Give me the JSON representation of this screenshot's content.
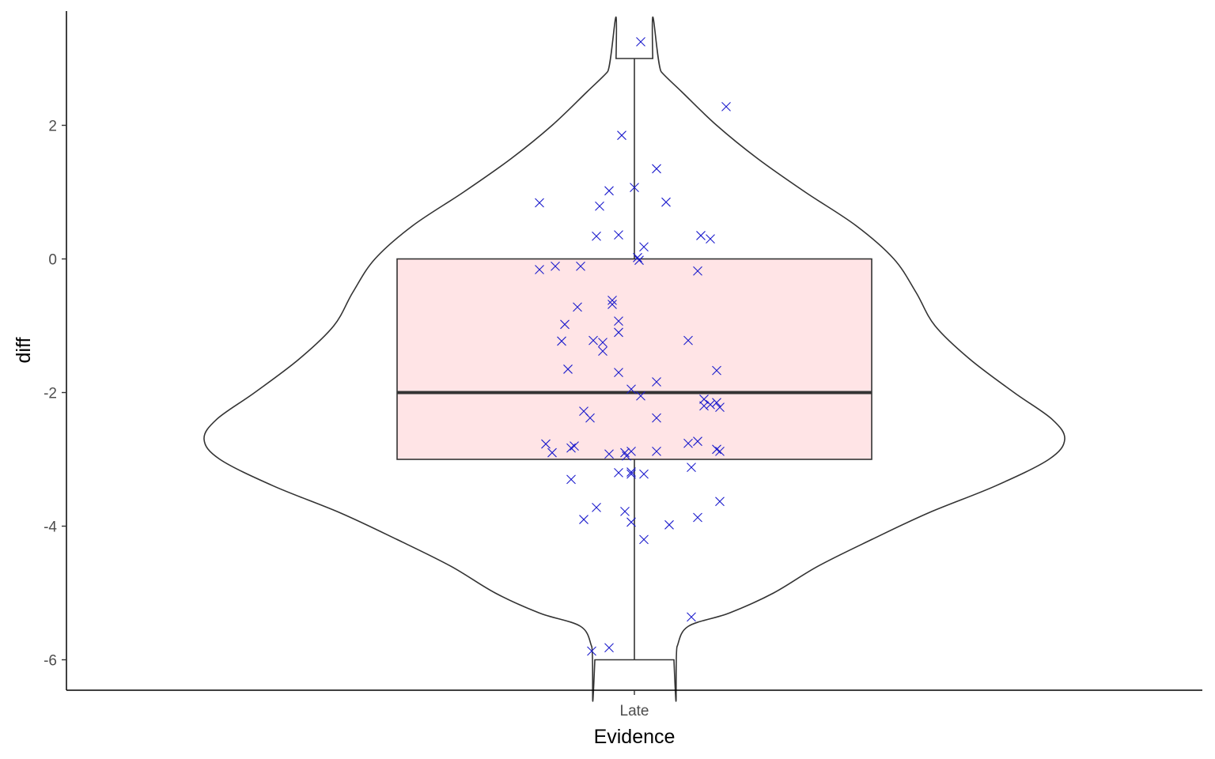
{
  "chart_data": {
    "type": "violin",
    "title": "",
    "xlabel": "Evidence",
    "ylabel": "diff",
    "categories": [
      "Late"
    ],
    "yticks": [
      2,
      0,
      -2,
      -4,
      -6
    ],
    "ytick_labels": [
      "2",
      "0",
      "-2",
      "-4",
      "-6"
    ],
    "ylim": [
      -6.45,
      3.7
    ],
    "grid": false,
    "legend": "none",
    "box": {
      "category": "Late",
      "min": -6,
      "q1": -3,
      "median": -2,
      "q3": 0,
      "max": 3,
      "fill_color": "#ffe4e6",
      "line_color": "#333333"
    },
    "violin": {
      "category": "Late",
      "line_color": "#333333",
      "density": [
        {
          "y": 3.0,
          "w": 0.058
        },
        {
          "y": 2.8,
          "w": 0.085
        },
        {
          "y": 2.5,
          "w": 0.15
        },
        {
          "y": 2.0,
          "w": 0.26
        },
        {
          "y": 1.5,
          "w": 0.39
        },
        {
          "y": 1.0,
          "w": 0.54
        },
        {
          "y": 0.5,
          "w": 0.7
        },
        {
          "y": 0.0,
          "w": 0.82
        },
        {
          "y": -0.5,
          "w": 0.89
        },
        {
          "y": -1.0,
          "w": 0.95
        },
        {
          "y": -1.5,
          "w": 1.06
        },
        {
          "y": -2.0,
          "w": 1.2
        },
        {
          "y": -2.4,
          "w": 1.32
        },
        {
          "y": -2.7,
          "w": 1.36
        },
        {
          "y": -3.0,
          "w": 1.31
        },
        {
          "y": -3.4,
          "w": 1.14
        },
        {
          "y": -3.8,
          "w": 0.93
        },
        {
          "y": -4.2,
          "w": 0.75
        },
        {
          "y": -4.6,
          "w": 0.58
        },
        {
          "y": -5.0,
          "w": 0.44
        },
        {
          "y": -5.3,
          "w": 0.3
        },
        {
          "y": -5.5,
          "w": 0.17
        },
        {
          "y": -5.8,
          "w": 0.135
        },
        {
          "y": -6.0,
          "w": 0.125
        }
      ]
    },
    "points_color": "#1a1acc",
    "points": [
      {
        "x": 0.02,
        "y": 3.25
      },
      {
        "x": -0.04,
        "y": 1.85
      },
      {
        "x": 0.29,
        "y": 2.28
      },
      {
        "x": 0.07,
        "y": 1.35
      },
      {
        "x": -0.08,
        "y": 1.02
      },
      {
        "x": 0.0,
        "y": 1.07
      },
      {
        "x": -0.3,
        "y": 0.84
      },
      {
        "x": -0.11,
        "y": 0.79
      },
      {
        "x": 0.1,
        "y": 0.85
      },
      {
        "x": -0.12,
        "y": 0.34
      },
      {
        "x": -0.05,
        "y": 0.36
      },
      {
        "x": 0.21,
        "y": 0.35
      },
      {
        "x": 0.24,
        "y": 0.3
      },
      {
        "x": 0.03,
        "y": 0.18
      },
      {
        "x": 0.01,
        "y": 0.02
      },
      {
        "x": 0.015,
        "y": -0.02
      },
      {
        "x": -0.3,
        "y": -0.16
      },
      {
        "x": -0.25,
        "y": -0.11
      },
      {
        "x": -0.17,
        "y": -0.11
      },
      {
        "x": 0.2,
        "y": -0.18
      },
      {
        "x": -0.07,
        "y": -0.62
      },
      {
        "x": -0.07,
        "y": -0.68
      },
      {
        "x": -0.18,
        "y": -0.72
      },
      {
        "x": -0.05,
        "y": -0.93
      },
      {
        "x": -0.22,
        "y": -0.98
      },
      {
        "x": -0.05,
        "y": -1.1
      },
      {
        "x": -0.23,
        "y": -1.23
      },
      {
        "x": -0.13,
        "y": -1.22
      },
      {
        "x": -0.1,
        "y": -1.25
      },
      {
        "x": -0.1,
        "y": -1.38
      },
      {
        "x": 0.17,
        "y": -1.22
      },
      {
        "x": -0.21,
        "y": -1.65
      },
      {
        "x": -0.05,
        "y": -1.7
      },
      {
        "x": 0.26,
        "y": -1.67
      },
      {
        "x": 0.07,
        "y": -1.84
      },
      {
        "x": -0.01,
        "y": -1.95
      },
      {
        "x": 0.02,
        "y": -2.05
      },
      {
        "x": 0.22,
        "y": -2.1
      },
      {
        "x": 0.22,
        "y": -2.2
      },
      {
        "x": 0.24,
        "y": -2.18
      },
      {
        "x": 0.26,
        "y": -2.15
      },
      {
        "x": 0.27,
        "y": -2.22
      },
      {
        "x": -0.16,
        "y": -2.28
      },
      {
        "x": -0.14,
        "y": -2.38
      },
      {
        "x": 0.07,
        "y": -2.38
      },
      {
        "x": -0.28,
        "y": -2.77
      },
      {
        "x": -0.26,
        "y": -2.9
      },
      {
        "x": -0.2,
        "y": -2.83
      },
      {
        "x": -0.19,
        "y": -2.8
      },
      {
        "x": -0.08,
        "y": -2.92
      },
      {
        "x": -0.03,
        "y": -2.9
      },
      {
        "x": -0.025,
        "y": -2.95
      },
      {
        "x": -0.01,
        "y": -2.88
      },
      {
        "x": 0.07,
        "y": -2.88
      },
      {
        "x": 0.17,
        "y": -2.76
      },
      {
        "x": 0.2,
        "y": -2.73
      },
      {
        "x": 0.26,
        "y": -2.85
      },
      {
        "x": 0.27,
        "y": -2.88
      },
      {
        "x": 0.18,
        "y": -3.12
      },
      {
        "x": -0.05,
        "y": -3.2
      },
      {
        "x": -0.01,
        "y": -3.19
      },
      {
        "x": -0.01,
        "y": -3.22
      },
      {
        "x": 0.03,
        "y": -3.22
      },
      {
        "x": -0.2,
        "y": -3.3
      },
      {
        "x": 0.27,
        "y": -3.63
      },
      {
        "x": -0.12,
        "y": -3.72
      },
      {
        "x": -0.03,
        "y": -3.78
      },
      {
        "x": -0.16,
        "y": -3.9
      },
      {
        "x": -0.01,
        "y": -3.94
      },
      {
        "x": 0.11,
        "y": -3.98
      },
      {
        "x": 0.2,
        "y": -3.87
      },
      {
        "x": 0.03,
        "y": -4.2
      },
      {
        "x": 0.18,
        "y": -5.36
      },
      {
        "x": -0.08,
        "y": -5.82
      },
      {
        "x": -0.135,
        "y": -5.87
      }
    ]
  }
}
